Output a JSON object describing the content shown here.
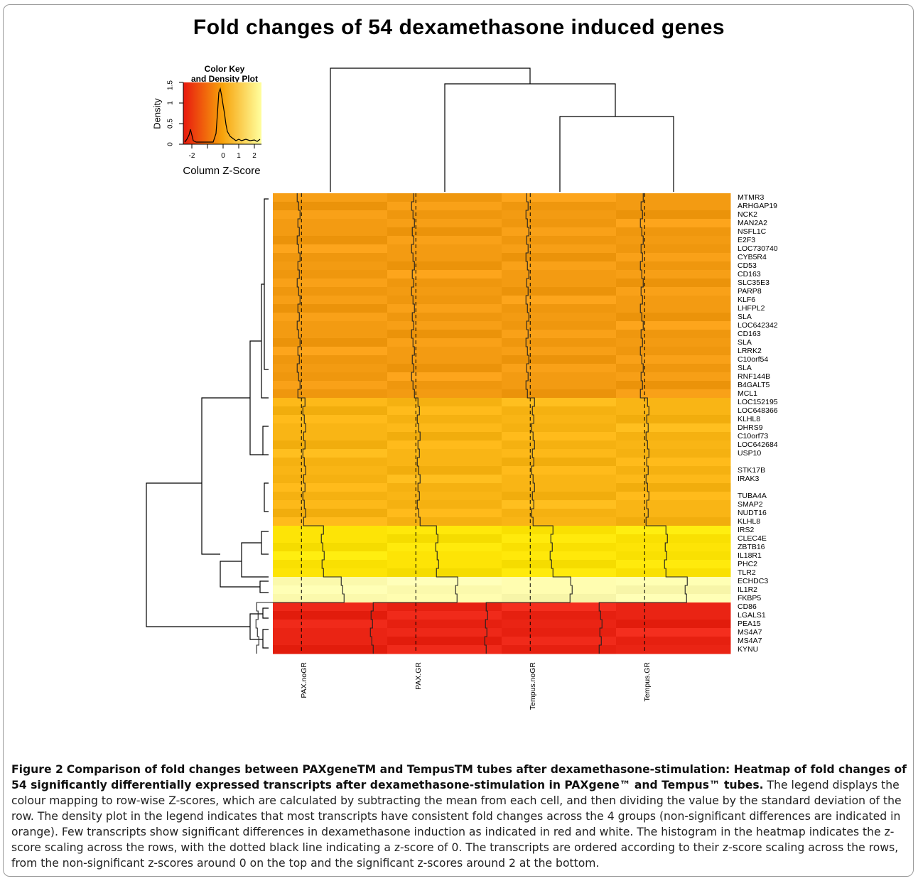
{
  "figure": {
    "title": "Fold changes of 54 dexamethasone induced genes",
    "caption_label": "Figure 2",
    "caption_title": "Comparison of fold changes between PAXgeneTM and TempusTM tubes after dexamethasone-stimulation: Heatmap of fold changes of 54 significantly differentially expressed transcripts after dexamethasone-stimulation in PAXgene™ and Tempus™ tubes",
    "caption_text": "The legend displays the colour mapping to row-wise Z-scores, which are calculated by subtracting the mean from each cell, and then dividing the value by the standard deviation of the row. The density plot in the legend indicates that most transcripts have consistent fold changes across the 4 groups (non-significant differences are indicated in orange). Few transcripts show significant differences in dexamethasone induction as indicated in red and white. The histogram in the heatmap indicates the z-score scaling across the rows, with the dotted black line indicating a z-score of 0. The transcripts are ordered according to their z-score scaling across the rows, from the non-significant z-scores around 0 on the top and the significant z-scores around 2 at the bottom."
  },
  "legend": {
    "title_line1": "Color Key",
    "title_line2": "and Density Plot",
    "ylabel": "Density",
    "xlabel": "Column Z-Score",
    "x_ticks": [
      "-2",
      "0",
      "1",
      "2"
    ],
    "y_ticks": [
      "0",
      "0.5",
      "1",
      "1.5"
    ]
  },
  "chart_data": {
    "type": "heatmap",
    "title": "Fold changes of 54 dexamethasone induced genes",
    "columns": [
      "PAX.noGR",
      "PAX.GR",
      "Tempus.noGR",
      "Tempus.GR"
    ],
    "rows": [
      "MTMR3",
      "ARHGAP19",
      "NCK2",
      "MAN2A2",
      "NSFL1C",
      "E2F3",
      "LOC730740",
      "CYB5R4",
      "CD53",
      "CD163",
      "SLC35E3",
      "PARP8",
      "KLF6",
      "LHFPL2",
      "SLA",
      "LOC642342",
      "CD163",
      "SLA",
      "LRRK2",
      "C10orf54",
      "SLA",
      "RNF144B",
      "B4GALT5",
      "MCL1",
      "LOC152195",
      "LOC648366",
      "KLHL8",
      "DHRS9",
      "C10orf73",
      "LOC642684",
      "USP10",
      "",
      "STK17B",
      "IRAK3",
      "",
      "TUBA4A",
      "SMAP2",
      "NUDT16",
      "KLHL8",
      "IRS2",
      "CLEC4E",
      "ZBTB16",
      "IL18R1",
      "PHC2",
      "TLR2",
      "ECHDC3",
      "IL1R2",
      "FKBP5",
      "CD86",
      "LGALS1",
      "PEA15",
      "MS4A7",
      "MS4A7",
      "KYNU"
    ],
    "row_groups": [
      "orange",
      "orange",
      "orange",
      "orange",
      "orange",
      "orange",
      "orange",
      "orange",
      "orange",
      "orange",
      "orange",
      "orange",
      "orange",
      "orange",
      "orange",
      "orange",
      "orange",
      "orange",
      "orange",
      "orange",
      "orange",
      "orange",
      "orange",
      "orange",
      "light-orange",
      "light-orange",
      "light-orange",
      "light-orange",
      "light-orange",
      "light-orange",
      "light-orange",
      "light-orange",
      "light-orange",
      "light-orange",
      "light-orange",
      "light-orange",
      "light-orange",
      "light-orange",
      "light-orange",
      "yellow",
      "yellow",
      "yellow",
      "yellow",
      "yellow",
      "yellow",
      "pale-yellow",
      "pale-yellow",
      "pale-yellow",
      "red",
      "red",
      "red",
      "red",
      "red",
      "red"
    ],
    "color_scale": {
      "low": "#e8190f",
      "mid": "#f7a20a",
      "high": "#ffff9e",
      "z_range": [
        -2.5,
        2.5
      ]
    },
    "zero_line": "dotted"
  },
  "colors": {
    "orange": "#f39b12",
    "light_orange": "#f9b515",
    "yellow": "#fde406",
    "pale_yellow": "#fffdb0",
    "red": "#ea2414"
  }
}
